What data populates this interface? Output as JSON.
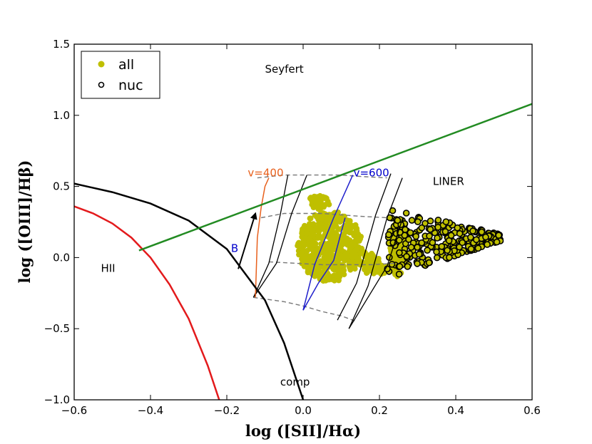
{
  "chart_data": {
    "type": "scatter",
    "title": "",
    "xlabel": "log  ([SII]/Hα)",
    "ylabel": "log  ([OIII]/Hβ)",
    "xlim": [
      -0.6,
      0.6
    ],
    "ylim": [
      -1.0,
      1.5
    ],
    "xticks": [
      -0.6,
      -0.4,
      -0.2,
      0.0,
      0.2,
      0.4,
      0.6
    ],
    "yticks": [
      -1.0,
      -0.5,
      0.0,
      0.5,
      1.0,
      1.5
    ],
    "xtick_labels": [
      "−0.6",
      "−0.4",
      "−0.2",
      "0.0",
      "0.2",
      "0.4",
      "0.6"
    ],
    "ytick_labels": [
      "−1.0",
      "−0.5",
      "0.0",
      "0.5",
      "1.0",
      "1.5"
    ],
    "legend": {
      "location": "top-left",
      "entries": [
        {
          "label": "all",
          "marker": "filled-circle",
          "color": "#bfbf00"
        },
        {
          "label": "nuc",
          "marker": "open-circle",
          "color": "#000000"
        }
      ]
    },
    "region_labels": [
      {
        "text": "Seyfert",
        "x": -0.1,
        "y": 1.3
      },
      {
        "text": "LINER",
        "x": 0.34,
        "y": 0.51
      },
      {
        "text": "HII",
        "x": -0.53,
        "y": -0.1
      },
      {
        "text": "comp",
        "x": -0.06,
        "y": -0.9
      }
    ],
    "annotations": [
      {
        "text": "v=400",
        "x": -0.145,
        "y": 0.57,
        "color": "#e8601c"
      },
      {
        "text": "v=600",
        "x": 0.132,
        "y": 0.57,
        "color": "#0000cc"
      },
      {
        "text": "B",
        "x": -0.189,
        "y": 0.04,
        "color": "#0000cc"
      }
    ],
    "arrow": {
      "from": [
        -0.17,
        -0.08
      ],
      "to": [
        -0.125,
        0.31
      ],
      "color": "#000000"
    },
    "curves": [
      {
        "name": "kewley-extreme-starburst",
        "color": "#000000",
        "width": 2.5,
        "x": [
          -0.6,
          -0.5,
          -0.4,
          -0.3,
          -0.2,
          -0.1,
          -0.05,
          0.0
        ],
        "y": [
          0.52,
          0.46,
          0.38,
          0.26,
          0.06,
          -0.3,
          -0.6,
          -1.0
        ]
      },
      {
        "name": "kauffmann-starforming",
        "color": "#e31a1c",
        "width": 2.5,
        "x": [
          -0.6,
          -0.55,
          -0.5,
          -0.45,
          -0.4,
          -0.35,
          -0.3,
          -0.25,
          -0.22
        ],
        "y": [
          0.36,
          0.31,
          0.24,
          0.14,
          0.0,
          -0.19,
          -0.43,
          -0.76,
          -1.0
        ]
      },
      {
        "name": "seyfert-liner-division",
        "color": "#228b22",
        "width": 2.5,
        "x": [
          -0.43,
          0.6
        ],
        "y": [
          0.05,
          1.08
        ]
      }
    ],
    "model_grid": {
      "grey_dashed": [
        {
          "x": [
            -0.12,
            -0.05,
            0.0,
            0.05,
            0.1,
            0.15,
            0.22
          ],
          "y": [
            0.56,
            0.58,
            0.58,
            0.58,
            0.58,
            0.57,
            0.56
          ]
        },
        {
          "x": [
            -0.11,
            -0.05,
            0.0,
            0.05,
            0.1,
            0.15,
            0.22
          ],
          "y": [
            0.28,
            0.31,
            0.31,
            0.31,
            0.3,
            0.29,
            0.28
          ]
        },
        {
          "x": [
            -0.09,
            -0.02,
            0.05,
            0.12,
            0.18,
            0.24
          ],
          "y": [
            -0.03,
            -0.04,
            -0.05,
            -0.05,
            -0.05,
            -0.04
          ]
        },
        {
          "x": [
            -0.13,
            -0.05,
            0.0,
            0.05,
            0.1,
            0.14
          ],
          "y": [
            -0.28,
            -0.31,
            -0.34,
            -0.38,
            -0.41,
            -0.45
          ]
        }
      ],
      "black_lines": [
        {
          "x": [
            -0.13,
            -0.09,
            -0.06,
            -0.04
          ],
          "y": [
            -0.28,
            -0.04,
            0.3,
            0.58
          ]
        },
        {
          "x": [
            -0.13,
            -0.07,
            -0.03,
            0.01
          ],
          "y": [
            -0.28,
            -0.04,
            0.31,
            0.58
          ]
        },
        {
          "x": [
            0.09,
            0.14,
            0.19,
            0.23
          ],
          "y": [
            -0.44,
            -0.18,
            0.3,
            0.59
          ]
        },
        {
          "x": [
            0.12,
            0.17,
            0.22,
            0.26
          ],
          "y": [
            -0.5,
            -0.2,
            0.28,
            0.56
          ]
        },
        {
          "x": [
            0.12,
            0.22,
            0.26
          ],
          "y": [
            -0.5,
            -0.06,
            0.27
          ]
        }
      ],
      "orange_line": {
        "x": [
          -0.125,
          -0.12,
          -0.11,
          -0.1,
          -0.09
        ],
        "y": [
          -0.28,
          0.14,
          0.35,
          0.5,
          0.56
        ]
      },
      "blue_lines": [
        {
          "x": [
            0.0,
            0.03,
            0.08,
            0.13
          ],
          "y": [
            -0.37,
            -0.05,
            0.28,
            0.58
          ]
        },
        {
          "x": [
            0.0,
            0.04,
            0.08,
            0.11
          ],
          "y": [
            -0.37,
            -0.18,
            -0.02,
            0.28
          ]
        }
      ]
    },
    "series": [
      {
        "name": "all",
        "type": "filled",
        "color": "#bfbf00",
        "blobs": [
          {
            "cx": 0.07,
            "cy": 0.08,
            "rx": 0.085,
            "ry": 0.25,
            "n": 520
          },
          {
            "cx": 0.16,
            "cy": -0.02,
            "rx": 0.04,
            "ry": 0.06,
            "n": 60
          },
          {
            "cx": 0.19,
            "cy": -0.08,
            "rx": 0.035,
            "ry": 0.04,
            "n": 40
          },
          {
            "cx": 0.245,
            "cy": 0.05,
            "rx": 0.022,
            "ry": 0.19,
            "n": 120
          },
          {
            "cx": 0.04,
            "cy": 0.38,
            "rx": 0.03,
            "ry": 0.06,
            "n": 40
          }
        ]
      },
      {
        "name": "nuc",
        "type": "open",
        "color": "#000000",
        "region": {
          "x0": 0.22,
          "x1": 0.52,
          "y0": -0.12,
          "y1": 0.32,
          "n": 260
        }
      }
    ]
  }
}
